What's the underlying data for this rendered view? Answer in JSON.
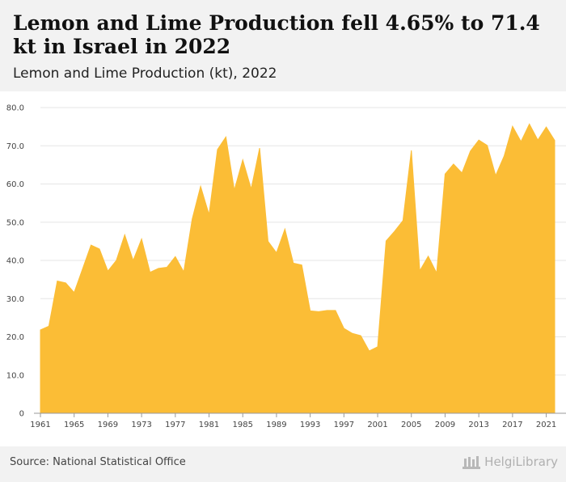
{
  "header": {
    "title": "Lemon and Lime Production fell 4.65% to 71.4 kt in Israel in 2022",
    "subtitle": "Lemon and Lime Production (kt), 2022"
  },
  "footer": {
    "source": "Source: National Statistical Office",
    "brand": "HelgiLibrary"
  },
  "colors": {
    "area": "#fbbd36",
    "grid": "#e6e6e6",
    "axis": "#999999",
    "header_bg": "#f2f2f2"
  },
  "chart_data": {
    "type": "area",
    "title": "",
    "xlabel": "",
    "ylabel": "",
    "ylim": [
      0,
      80
    ],
    "yticks": [
      "0",
      "10.0",
      "20.0",
      "30.0",
      "40.0",
      "50.0",
      "60.0",
      "70.0",
      "80.0"
    ],
    "xticks": [
      "1961",
      "1965",
      "1969",
      "1973",
      "1977",
      "1981",
      "1985",
      "1989",
      "1993",
      "1997",
      "2001",
      "2005",
      "2009",
      "2013",
      "2017",
      "2021"
    ],
    "grid": true,
    "legend": "none",
    "x": [
      1961,
      1962,
      1963,
      1964,
      1965,
      1966,
      1967,
      1968,
      1969,
      1970,
      1971,
      1972,
      1973,
      1974,
      1975,
      1976,
      1977,
      1978,
      1979,
      1980,
      1981,
      1982,
      1983,
      1984,
      1985,
      1986,
      1987,
      1988,
      1989,
      1990,
      1991,
      1992,
      1993,
      1994,
      1995,
      1996,
      1997,
      1998,
      1999,
      2000,
      2001,
      2002,
      2003,
      2004,
      2005,
      2006,
      2007,
      2008,
      2009,
      2010,
      2011,
      2012,
      2013,
      2014,
      2015,
      2016,
      2017,
      2018,
      2019,
      2020,
      2021,
      2022
    ],
    "series": [
      {
        "values": [
          21.8,
          22.8,
          34.6,
          34.1,
          31.6,
          37.8,
          44.0,
          43.0,
          37.2,
          40.0,
          46.7,
          40.0,
          45.6,
          36.9,
          37.9,
          38.2,
          41.0,
          37.0,
          50.8,
          59.4,
          52.0,
          69.0,
          72.3,
          58.4,
          66.3,
          58.7,
          69.4,
          45.0,
          42.0,
          48.2,
          39.3,
          38.8,
          26.8,
          26.6,
          26.9,
          26.9,
          22.2,
          20.9,
          20.3,
          16.3,
          17.4,
          45.1,
          47.6,
          50.4,
          68.8,
          37.3,
          41.1,
          36.7,
          62.6,
          65.2,
          62.9,
          68.6,
          71.5,
          70.1,
          62.2,
          67.3,
          75.1,
          71.1,
          75.7,
          71.5,
          74.9,
          71.4
        ]
      }
    ]
  }
}
